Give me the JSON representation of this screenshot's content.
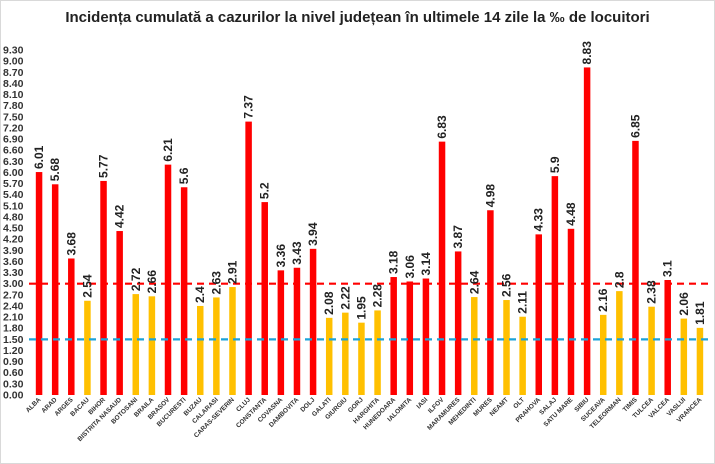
{
  "chart_data": {
    "type": "bar",
    "title": "Incidența cumulată a cazurilor la nivel județean în ultimele 14 zile la ‰ de locuitori",
    "xlabel": "",
    "ylabel": "",
    "ylim": [
      0,
      9.3
    ],
    "yticks": [
      "0.00",
      "0.30",
      "0.60",
      "0.90",
      "1.20",
      "1.50",
      "1.80",
      "2.10",
      "2.40",
      "2.70",
      "3.00",
      "3.30",
      "3.60",
      "3.90",
      "4.20",
      "4.50",
      "4.80",
      "5.10",
      "5.40",
      "5.70",
      "6.00",
      "6.30",
      "6.60",
      "6.90",
      "7.20",
      "7.50",
      "7.80",
      "8.10",
      "8.40",
      "8.70",
      "9.00",
      "9.30"
    ],
    "grid": false,
    "legend": "none",
    "categories": [
      "ALBA",
      "ARAD",
      "ARGES",
      "BACAU",
      "BIHOR",
      "BISTRITA NASAUD",
      "BOTOSANI",
      "BRAILA",
      "BRASOV",
      "BUCURESTI",
      "BUZAU",
      "CALARASI",
      "CARAS-SEVERIN",
      "CLUJ",
      "CONSTANTA",
      "COVASNA",
      "DAMBOVITA",
      "DOLJ",
      "GALATI",
      "GIURGIU",
      "GORJ",
      "HARGHITA",
      "HUNEDOARA",
      "IALOMITA",
      "IASI",
      "ILFOV",
      "MARAMURES",
      "MEHEDINTI",
      "MURES",
      "NEAMT",
      "OLT",
      "PRAHOVA",
      "SALAJ",
      "SATU MARE",
      "SIBIU",
      "SUCEAVA",
      "TELEORMAN",
      "TIMIS",
      "TULCEA",
      "VALCEA",
      "VASLUI",
      "VRANCEA"
    ],
    "values": [
      6.01,
      5.68,
      3.68,
      2.54,
      5.77,
      4.42,
      2.72,
      2.66,
      6.21,
      5.6,
      2.4,
      2.63,
      2.91,
      7.37,
      5.2,
      3.36,
      3.43,
      3.94,
      2.08,
      2.22,
      1.95,
      2.28,
      3.18,
      3.06,
      3.14,
      6.83,
      3.87,
      2.64,
      4.98,
      2.56,
      2.11,
      4.33,
      5.9,
      4.48,
      8.83,
      2.16,
      2.8,
      6.85,
      2.38,
      3.1,
      2.06,
      1.81
    ],
    "value_labels": [
      "6.01",
      "5.68",
      "3.68",
      "2.54",
      "5.77",
      "4.42",
      "2.72",
      "2.66",
      "6.21",
      "5.6",
      "2.4",
      "2.63",
      "2.91",
      "7.37",
      "5.2",
      "3.36",
      "3.43",
      "3.94",
      "2.08",
      "2.22",
      "1.95",
      "2.28",
      "3.18",
      "3.06",
      "3.14",
      "6.83",
      "3.87",
      "2.64",
      "4.98",
      "2.56",
      "2.11",
      "4.33",
      "5.9",
      "4.48",
      "8.83",
      "2.16",
      "2.8",
      "6.85",
      "2.38",
      "3.1",
      "2.06",
      "1.81"
    ],
    "thresholds": [
      {
        "value": 3.0,
        "color": "#ff0000",
        "style": "dashed"
      },
      {
        "value": 1.5,
        "color": "#1ca3d9",
        "style": "dashed"
      }
    ],
    "colors": {
      "above": "#ff0000",
      "between": "#ffc000"
    }
  }
}
